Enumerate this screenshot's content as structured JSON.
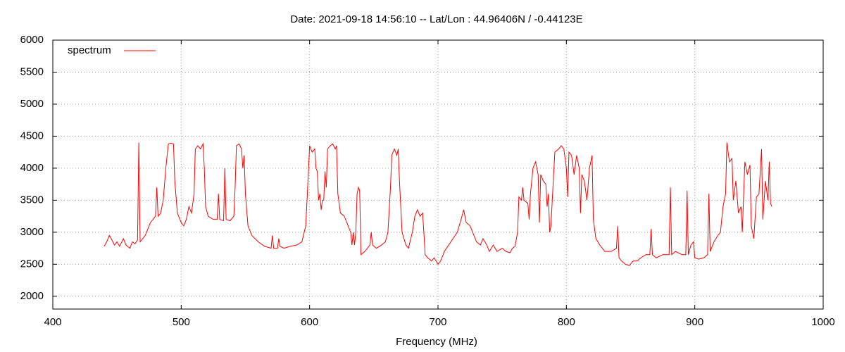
{
  "chart_data": {
    "type": "line",
    "title": "Date: 2021-09-18 14:56:10  --  Lat/Lon : 44.96406N / -0.44123E",
    "x_label": "Frequency (MHz)",
    "xlim": [
      400,
      1000
    ],
    "xticks": [
      400,
      500,
      600,
      700,
      800,
      900,
      1000
    ],
    "ylim": [
      1800,
      6000
    ],
    "yticks": [
      2000,
      2500,
      3000,
      3500,
      4000,
      4500,
      5000,
      5500,
      6000
    ],
    "grid": true,
    "legend": "top-left",
    "x": [
      440,
      442,
      444,
      446,
      448,
      450,
      452,
      455,
      457,
      460,
      462,
      464,
      466,
      467,
      468,
      470,
      472,
      474,
      476,
      478,
      480,
      481,
      482,
      484,
      486,
      488,
      490,
      492,
      494,
      495,
      497,
      500,
      502,
      504,
      506,
      508,
      510,
      511,
      513,
      515,
      517,
      518,
      519,
      521,
      525,
      528,
      529,
      530,
      533,
      534,
      535,
      538,
      541,
      542,
      543,
      545,
      547,
      548,
      549,
      550,
      552,
      555,
      560,
      565,
      570,
      571,
      572,
      575,
      576,
      577,
      580,
      585,
      590,
      594,
      597,
      599,
      600,
      602,
      604,
      605,
      606,
      607,
      608,
      609,
      610,
      611,
      612,
      613,
      614,
      616,
      618,
      620,
      621,
      622,
      624,
      627,
      630,
      632,
      633,
      634,
      635,
      636,
      637,
      638,
      639,
      640,
      643,
      645,
      647,
      648,
      649,
      652,
      656,
      659,
      661,
      663,
      664,
      666,
      668,
      669,
      670,
      672,
      675,
      677,
      680,
      682,
      684,
      686,
      688,
      689,
      690,
      692,
      695,
      697,
      700,
      702,
      705,
      710,
      715,
      718,
      720,
      722,
      725,
      728,
      730,
      733,
      735,
      738,
      740,
      743,
      746,
      750,
      753,
      756,
      758,
      760,
      762,
      763,
      765,
      766,
      767,
      770,
      771,
      772,
      774,
      776,
      778,
      779,
      780,
      782,
      784,
      785,
      786,
      787,
      788,
      789,
      791,
      794,
      796,
      798,
      800,
      801,
      802,
      804,
      806,
      808,
      810,
      811,
      812,
      814,
      816,
      818,
      820,
      821,
      823,
      826,
      830,
      835,
      839,
      840,
      841,
      843,
      846,
      849,
      852,
      855,
      858,
      862,
      865,
      866,
      867,
      870,
      875,
      880,
      881,
      882,
      885,
      890,
      893,
      894,
      895,
      897,
      899,
      900,
      903,
      907,
      910,
      911,
      912,
      915,
      918,
      920,
      922,
      924,
      925,
      927,
      929,
      930,
      932,
      934,
      936,
      937,
      939,
      941,
      943,
      944,
      946,
      948,
      950,
      952,
      953,
      955,
      957,
      958,
      959,
      960
    ],
    "series": [
      {
        "name": "spectrum",
        "color": "#ff0000",
        "values": [
          2780,
          2850,
          2950,
          2880,
          2800,
          2850,
          2780,
          2900,
          2800,
          2750,
          2850,
          2820,
          2880,
          4400,
          2850,
          2900,
          2950,
          3050,
          3150,
          3200,
          3250,
          3700,
          3250,
          3300,
          3500,
          4000,
          4380,
          4390,
          4380,
          3800,
          3300,
          3150,
          3100,
          3200,
          3400,
          3300,
          3600,
          4300,
          4350,
          4300,
          4380,
          4000,
          3400,
          3250,
          3200,
          3200,
          3600,
          3200,
          3180,
          4000,
          3200,
          3180,
          3250,
          3700,
          4350,
          4380,
          4300,
          4000,
          4200,
          3600,
          3100,
          2950,
          2850,
          2780,
          2750,
          2950,
          2750,
          2750,
          2900,
          2780,
          2750,
          2780,
          2800,
          2850,
          3100,
          3900,
          4350,
          4250,
          4300,
          4000,
          3950,
          3500,
          3600,
          3350,
          3500,
          3500,
          3950,
          3700,
          4300,
          4350,
          4380,
          4300,
          4350,
          3600,
          3300,
          3250,
          3100,
          3000,
          2800,
          3000,
          2800,
          3000,
          3600,
          3700,
          3650,
          2650,
          2700,
          2750,
          2800,
          3000,
          2800,
          2750,
          2800,
          2850,
          3000,
          3700,
          4200,
          4300,
          4200,
          4300,
          3800,
          3000,
          2800,
          2750,
          3000,
          3250,
          3350,
          3250,
          3300,
          3000,
          2650,
          2600,
          2550,
          2600,
          2500,
          2550,
          2700,
          2850,
          3000,
          3200,
          3350,
          3150,
          3100,
          2950,
          2850,
          2800,
          2900,
          2800,
          2700,
          2800,
          2700,
          2750,
          2700,
          2680,
          2750,
          2780,
          3000,
          3550,
          3500,
          3700,
          3500,
          3450,
          3200,
          3600,
          4000,
          4100,
          3900,
          3150,
          3900,
          3800,
          3750,
          3400,
          3600,
          3000,
          3100,
          3500,
          4250,
          4300,
          4350,
          4300,
          4000,
          3550,
          4250,
          4200,
          3900,
          4200,
          4000,
          3300,
          3900,
          3800,
          3500,
          4000,
          4200,
          3200,
          2900,
          2800,
          2700,
          2700,
          2750,
          3100,
          2600,
          2550,
          2500,
          2480,
          2550,
          2550,
          2600,
          2650,
          2650,
          3050,
          2650,
          2600,
          2650,
          2650,
          3700,
          2650,
          2700,
          2650,
          2650,
          3650,
          2650,
          2800,
          2850,
          2600,
          2580,
          2600,
          2650,
          3600,
          2700,
          2850,
          2950,
          3000,
          3400,
          3600,
          4400,
          4100,
          4150,
          3500,
          3800,
          3300,
          3400,
          3000,
          4100,
          3900,
          4050,
          3100,
          2900,
          3550,
          3600,
          4300,
          3200,
          3800,
          3500,
          4100,
          3450,
          3400
        ]
      }
    ]
  }
}
